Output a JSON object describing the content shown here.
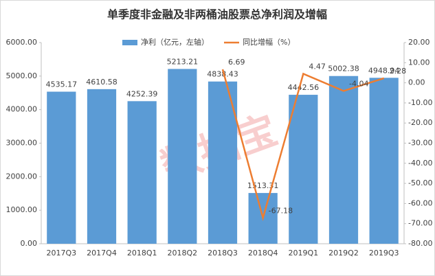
{
  "chart_data": {
    "type": "bar_line",
    "title": "单季度非金融及非两桶油股票总净利润及增幅",
    "watermark": "数据宝",
    "categories": [
      "2017Q3",
      "2017Q4",
      "2018Q1",
      "2018Q2",
      "2018Q3",
      "2018Q4",
      "2019Q1",
      "2019Q2",
      "2019Q3"
    ],
    "series": [
      {
        "name": "净利（亿元，左轴）",
        "color": "#5b9bd5",
        "type": "bar",
        "values": [
          4535.17,
          4610.58,
          4252.39,
          5213.21,
          4838.43,
          1513.31,
          4442.56,
          5002.38,
          4948.94
        ]
      },
      {
        "name": "同比增幅（%）",
        "color": "#ed7d31",
        "type": "line",
        "axis": "y2",
        "values": [
          null,
          null,
          null,
          null,
          6.69,
          -67.18,
          4.47,
          -4.04,
          2.28
        ]
      }
    ],
    "ylim": [
      0,
      6000
    ],
    "yticks": [
      {
        "value": 0,
        "label": "0.00"
      },
      {
        "value": 1000,
        "label": "1000.00"
      },
      {
        "value": 2000,
        "label": "2000.00"
      },
      {
        "value": 3000,
        "label": "3000.00"
      },
      {
        "value": 4000,
        "label": "4000.00"
      },
      {
        "value": 5000,
        "label": "5000.00"
      },
      {
        "value": 6000,
        "label": "6000.00"
      }
    ],
    "y2lim": [
      -80,
      20
    ],
    "y2ticks": [
      {
        "value": -80,
        "label": "-80.00"
      },
      {
        "value": -70,
        "label": "-70.00"
      },
      {
        "value": -60,
        "label": "-60.00"
      },
      {
        "value": -50,
        "label": "-50.00"
      },
      {
        "value": -40,
        "label": "-40.00"
      },
      {
        "value": -30,
        "label": "-30.00"
      },
      {
        "value": -20,
        "label": "-20.00"
      },
      {
        "value": -10,
        "label": "-10.00"
      },
      {
        "value": 0,
        "label": "0.00"
      },
      {
        "value": 10,
        "label": "10.00"
      },
      {
        "value": 20,
        "label": "20.00"
      }
    ],
    "legend": "top"
  }
}
